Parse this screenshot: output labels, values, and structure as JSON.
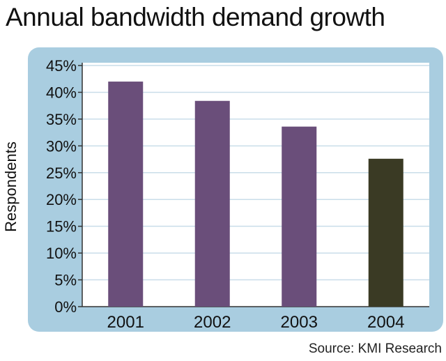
{
  "title": "Annual bandwidth demand growth",
  "source": "Source: KMI Research",
  "chart_data": {
    "type": "bar",
    "title": "Annual bandwidth demand growth",
    "xlabel": "",
    "ylabel": "Respondents",
    "categories": [
      "2001",
      "2002",
      "2003",
      "2004"
    ],
    "values": [
      42,
      38.4,
      33.6,
      27.6
    ],
    "ylim": [
      0,
      45
    ],
    "yticks": [
      0,
      5,
      10,
      15,
      20,
      25,
      30,
      35,
      40,
      45
    ],
    "ytick_format": "{v}%",
    "grid": true,
    "bar_colors": [
      "#6a4e7a",
      "#6a4e7a",
      "#6a4e7a",
      "#3a3a24"
    ],
    "frame_color": "#a9cde0",
    "plot_bg": "#ffffff",
    "grid_color": "#c9dde9"
  }
}
